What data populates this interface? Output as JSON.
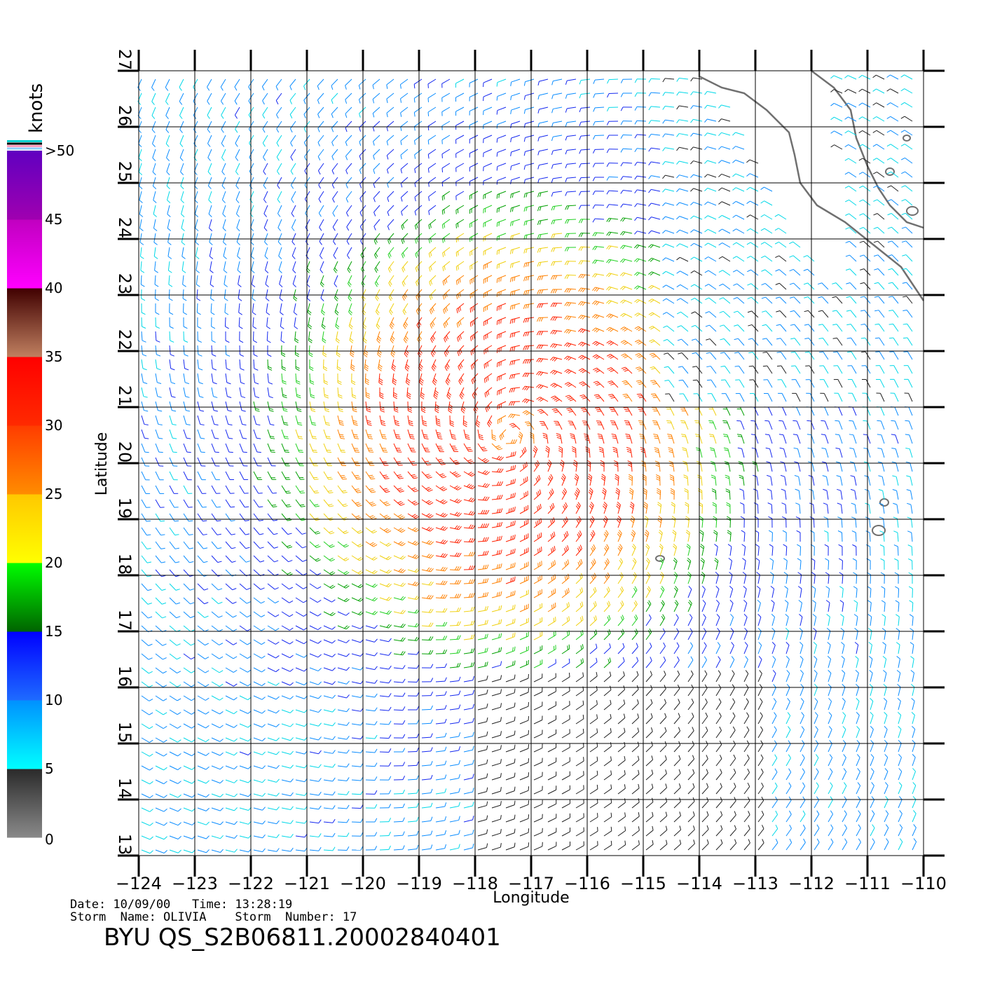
{
  "chart_data": {
    "type": "scatter",
    "subtype": "wind-barb-field",
    "xlabel": "Longitude",
    "ylabel": "Latitude",
    "xlim": [
      -124,
      -110
    ],
    "ylim": [
      13,
      27
    ],
    "x_ticks": [
      -124,
      -123,
      -122,
      -121,
      -120,
      -119,
      -118,
      -117,
      -116,
      -115,
      -114,
      -113,
      -112,
      -111,
      -110
    ],
    "y_ticks": [
      13,
      14,
      15,
      16,
      17,
      18,
      19,
      20,
      21,
      22,
      23,
      24,
      25,
      26,
      27
    ],
    "grid": true,
    "storm_center": [
      -117.4,
      20.5
    ],
    "colorbar": {
      "unit": "knots",
      "labels": [
        "0",
        "5",
        "10",
        "15",
        "20",
        "25",
        "30",
        "35",
        "40",
        "45",
        ">50"
      ],
      "bands": [
        {
          "range": [
            0,
            5
          ],
          "from": "#8a8a8a",
          "to": "#2a2a2a"
        },
        {
          "range": [
            5,
            10
          ],
          "from": "#00ffff",
          "to": "#0090ff"
        },
        {
          "range": [
            10,
            15
          ],
          "from": "#1e6bff",
          "to": "#0000ff"
        },
        {
          "range": [
            15,
            20
          ],
          "from": "#006400",
          "to": "#00ff00"
        },
        {
          "range": [
            20,
            25
          ],
          "from": "#ffff00",
          "to": "#ffc800"
        },
        {
          "range": [
            25,
            30
          ],
          "from": "#ff8c00",
          "to": "#ff3c00"
        },
        {
          "range": [
            30,
            35
          ],
          "from": "#ff2a00",
          "to": "#ff0000"
        },
        {
          "range": [
            35,
            40
          ],
          "from": "#c08060",
          "to": "#400000"
        },
        {
          "range": [
            40,
            45
          ],
          "from": "#ff00ff",
          "to": "#c000c0"
        },
        {
          "range": [
            45,
            50
          ],
          "from": "#a000b0",
          "to": "#6000c0"
        }
      ]
    }
  },
  "meta": {
    "line1": "Date: 10/09/00   Time: 13:28:19",
    "line2": "Storm  Name: OLIVIA    Storm  Number: 17",
    "title": "BYU  QS_S2B06811.20002840401"
  }
}
